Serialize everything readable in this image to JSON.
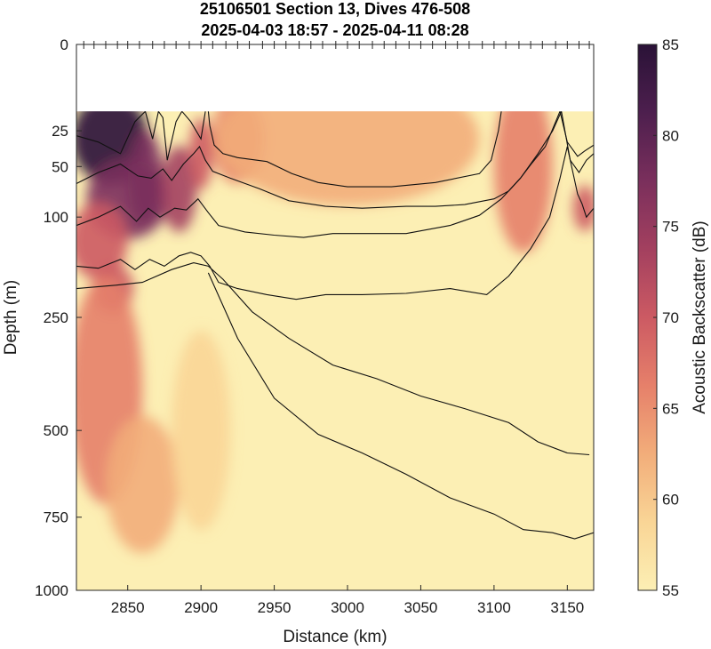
{
  "chart_data": {
    "type": "heatmap",
    "title": "25106501 Section 13, Dives 476-508",
    "subtitle": "2025-04-03 18:57 - 2025-04-11 08:28",
    "xlabel": "Distance (km)",
    "ylabel": "Depth (m)",
    "colorbar_label": "Acoustic Backscatter (dB)",
    "xlim": [
      2815,
      3168
    ],
    "ylim_top_to_bottom": [
      0,
      1000
    ],
    "y_scale": "square-root (depth)",
    "data_top_depth": 15,
    "x_ticks": [
      2850,
      2900,
      2950,
      3000,
      3050,
      3100,
      3150
    ],
    "y_ticks": [
      0,
      25,
      50,
      100,
      250,
      500,
      750,
      1000
    ],
    "colorbar_range": [
      55,
      85
    ],
    "colorbar_ticks": [
      55,
      60,
      65,
      70,
      75,
      80,
      85
    ],
    "colormap_stops": [
      "#fcefb4",
      "#f9d596",
      "#f2ad7a",
      "#e6806a",
      "#cc5a63",
      "#a3405f",
      "#7a2f5c",
      "#4d1f4e",
      "#2a1237"
    ],
    "dive_markers_km": [
      2820,
      2827,
      2835,
      2843,
      2850,
      2858,
      2867,
      2875,
      2883,
      2892,
      2900,
      2908,
      2917,
      2925,
      2933,
      2942,
      2950,
      2958,
      2967,
      2975,
      2983,
      2992,
      3000,
      3008,
      3017,
      3025,
      3033,
      3042,
      3050,
      3058,
      3067,
      3075,
      3083,
      3092,
      3100,
      3108,
      3117,
      3125,
      3133,
      3142,
      3150,
      3158,
      3165
    ],
    "contours": [
      {
        "x": [
          2815,
          2830,
          2845,
          2855,
          2862,
          2867,
          2871,
          2874,
          2877,
          2883,
          2887,
          2893,
          2900,
          2903
        ],
        "y": [
          28,
          32,
          40,
          20,
          15,
          30,
          15,
          18,
          45,
          20,
          15,
          20,
          30,
          15
        ]
      },
      {
        "x": [
          2905,
          2906,
          2909,
          2915,
          2925,
          2945,
          2962,
          2980,
          3000,
          3030,
          3060,
          3090,
          3098,
          3103,
          3105
        ],
        "y": [
          15,
          22,
          34,
          40,
          43,
          46,
          56,
          64,
          68,
          68,
          64,
          56,
          45,
          25,
          15
        ]
      },
      {
        "x": [
          2815,
          2830,
          2845,
          2857,
          2866,
          2874,
          2880,
          2888,
          2895,
          2899,
          2903,
          2908,
          2920,
          2940,
          2960,
          2985,
          3010,
          3040,
          3060,
          3080,
          3100,
          3110,
          3118,
          3126,
          3135,
          3145,
          3150,
          3157,
          3162,
          3168
        ],
        "y": [
          65,
          55,
          48,
          58,
          60,
          52,
          62,
          48,
          40,
          35,
          45,
          54,
          60,
          70,
          82,
          88,
          90,
          88,
          88,
          86,
          80,
          72,
          60,
          47,
          35,
          15,
          32,
          42,
          38,
          34
        ]
      },
      {
        "x": [
          2815,
          2830,
          2845,
          2856,
          2864,
          2872,
          2882,
          2890,
          2898,
          2905,
          2912,
          2930,
          2950,
          2970,
          2990,
          3010,
          3040,
          3070,
          3090,
          3105,
          3118,
          3130,
          3140,
          3146,
          3152,
          3158,
          3163,
          3168
        ],
        "y": [
          110,
          100,
          88,
          105,
          90,
          100,
          90,
          92,
          80,
          95,
          110,
          118,
          122,
          125,
          120,
          120,
          120,
          110,
          98,
          80,
          60,
          40,
          25,
          15,
          45,
          55,
          45,
          40
        ]
      },
      {
        "x": [
          2815,
          2830,
          2845,
          2855,
          2865,
          2875,
          2885,
          2893,
          2900,
          2906,
          2912,
          2925,
          2945,
          2965,
          2985,
          3010,
          3040,
          3070,
          3095,
          3110,
          3125,
          3138,
          3145,
          3150,
          3157,
          3160,
          3163,
          3168
        ],
        "y": [
          165,
          168,
          155,
          170,
          155,
          165,
          150,
          145,
          150,
          165,
          190,
          200,
          210,
          218,
          210,
          210,
          208,
          200,
          210,
          180,
          140,
          100,
          60,
          35,
          75,
          85,
          100,
          90
        ]
      },
      {
        "x": [
          2815,
          2840,
          2860,
          2880,
          2895,
          2905,
          2915,
          2935,
          2960,
          2990,
          3020,
          3050,
          3080,
          3110,
          3130,
          3150,
          3165
        ],
        "y": [
          200,
          195,
          190,
          170,
          160,
          165,
          185,
          240,
          290,
          345,
          375,
          415,
          445,
          480,
          530,
          560,
          565
        ]
      },
      {
        "x": [
          2905,
          2925,
          2950,
          2980,
          3010,
          3040,
          3070,
          3100,
          3120,
          3140,
          3155,
          3168
        ],
        "y": [
          175,
          290,
          420,
          510,
          560,
          620,
          690,
          740,
          790,
          800,
          820,
          800
        ]
      }
    ],
    "hotspots": [
      {
        "x": 2838,
        "depth": 30,
        "value": 84,
        "rx_km": 26,
        "ry_depth": 25
      },
      {
        "x": 2850,
        "depth": 80,
        "value": 79,
        "rx_km": 28,
        "ry_depth": 40
      },
      {
        "x": 2862,
        "depth": 60,
        "value": 78,
        "rx_km": 12,
        "ry_depth": 40
      },
      {
        "x": 2830,
        "depth": 130,
        "value": 70,
        "rx_km": 20,
        "ry_depth": 50
      },
      {
        "x": 2840,
        "depth": 200,
        "value": 69,
        "rx_km": 14,
        "ry_depth": 40
      },
      {
        "x": 2885,
        "depth": 70,
        "value": 72,
        "rx_km": 12,
        "ry_depth": 40
      },
      {
        "x": 2900,
        "depth": 40,
        "value": 70,
        "rx_km": 8,
        "ry_depth": 25
      },
      {
        "x": 2925,
        "depth": 30,
        "value": 68,
        "rx_km": 18,
        "ry_depth": 25
      },
      {
        "x": 3000,
        "depth": 30,
        "value": 62,
        "rx_km": 90,
        "ry_depth": 30
      },
      {
        "x": 3120,
        "depth": 50,
        "value": 65,
        "rx_km": 20,
        "ry_depth": 50
      },
      {
        "x": 3162,
        "depth": 90,
        "value": 70,
        "rx_km": 8,
        "ry_depth": 25
      },
      {
        "x": 2835,
        "depth": 400,
        "value": 65,
        "rx_km": 25,
        "ry_depth": 250
      },
      {
        "x": 2860,
        "depth": 650,
        "value": 61,
        "rx_km": 25,
        "ry_depth": 200
      },
      {
        "x": 2900,
        "depth": 500,
        "value": 59,
        "rx_km": 20,
        "ry_depth": 250
      }
    ]
  }
}
